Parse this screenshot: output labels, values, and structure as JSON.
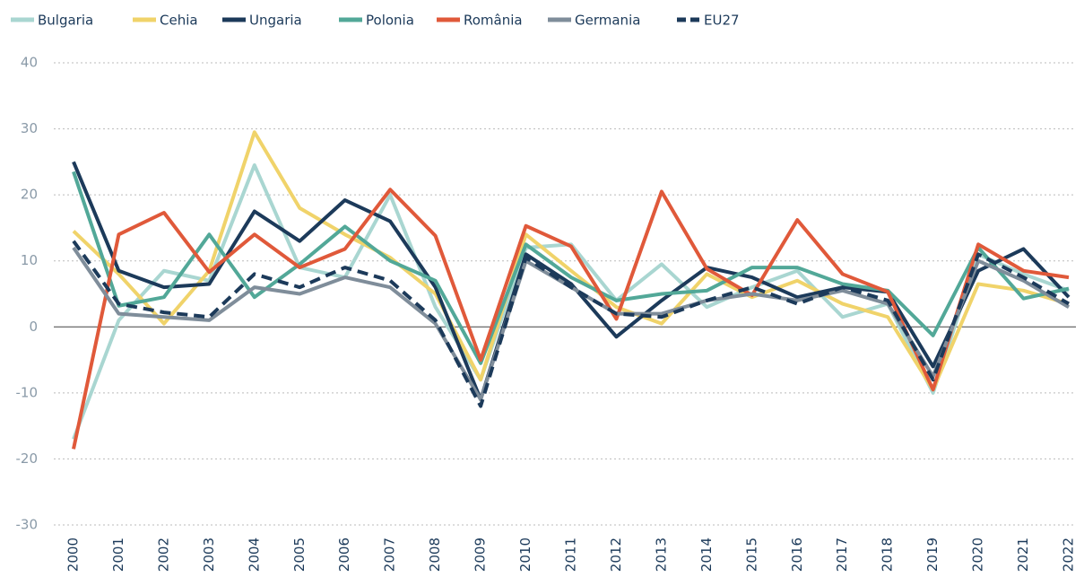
{
  "chart_data": {
    "type": "line",
    "categories": [
      "2000",
      "2001",
      "2002",
      "2003",
      "2004",
      "2005",
      "2006",
      "2007",
      "2008",
      "2009",
      "2010",
      "2011",
      "2012",
      "2013",
      "2014",
      "2015",
      "2016",
      "2017",
      "2018",
      "2019",
      "2020",
      "2021",
      "2022"
    ],
    "series": [
      {
        "name": "Bulgaria",
        "color": "#a9d6d1",
        "values": [
          -17,
          1,
          8.5,
          7,
          24.5,
          9,
          7.5,
          20,
          3,
          -8,
          12,
          12.5,
          4,
          9.5,
          3,
          6,
          8.5,
          1.5,
          3.5,
          -10,
          11,
          8,
          5.5
        ]
      },
      {
        "name": "Cehia",
        "color": "#f0d36a",
        "values": [
          14.5,
          8,
          0.5,
          8.5,
          29.5,
          18,
          14,
          10.5,
          5,
          -8,
          14,
          8.5,
          3,
          0.5,
          8,
          4.5,
          7,
          3.5,
          1.5,
          -9.5,
          6.5,
          5.5,
          3.5
        ]
      },
      {
        "name": "Ungaria",
        "color": "#1c3a5a",
        "values": [
          25,
          8.5,
          6,
          6.5,
          17.5,
          13,
          19.2,
          16,
          6,
          -11,
          11,
          6.5,
          -1.5,
          4,
          9,
          7.5,
          4.5,
          6,
          5.3,
          -6,
          8.5,
          11.8,
          4.5
        ]
      },
      {
        "name": "Polonia",
        "color": "#52a898",
        "values": [
          23.5,
          3.2,
          4.5,
          14,
          4.5,
          9.5,
          15.2,
          10,
          7,
          -5.5,
          12.5,
          7.5,
          4,
          5,
          5.5,
          9,
          9,
          6.5,
          5.5,
          -1.3,
          12,
          4.3,
          5.8
        ]
      },
      {
        "name": "România",
        "color": "#e0593a",
        "values": [
          -18.5,
          14,
          17.3,
          8.3,
          14,
          9,
          11.8,
          20.8,
          13.8,
          -5,
          15.3,
          12.2,
          1.2,
          20.5,
          8.8,
          4.8,
          16.2,
          8,
          5.3,
          -9.5,
          12.5,
          8.5,
          7.5
        ]
      },
      {
        "name": "Germania",
        "color": "#7f8d9a",
        "values": [
          12,
          2,
          1.5,
          1,
          6,
          5,
          7.5,
          6,
          0.5,
          -11,
          10,
          6,
          2,
          2,
          4,
          5,
          4,
          5.5,
          3.5,
          -7.5,
          10,
          7,
          3
        ]
      },
      {
        "name": "EU27",
        "color": "#1c3a5a",
        "dashed": true,
        "values": [
          13,
          3.5,
          2.2,
          1.5,
          8,
          6,
          9,
          7,
          1,
          -12,
          10.5,
          6,
          2,
          1.5,
          4,
          6,
          3.5,
          6,
          4,
          -8,
          11,
          7.5,
          3.5
        ]
      }
    ],
    "ylim": [
      -30,
      40
    ],
    "yticks": [
      -30,
      -20,
      -10,
      0,
      10,
      20,
      30,
      40
    ],
    "grid": true,
    "legend": "top"
  }
}
